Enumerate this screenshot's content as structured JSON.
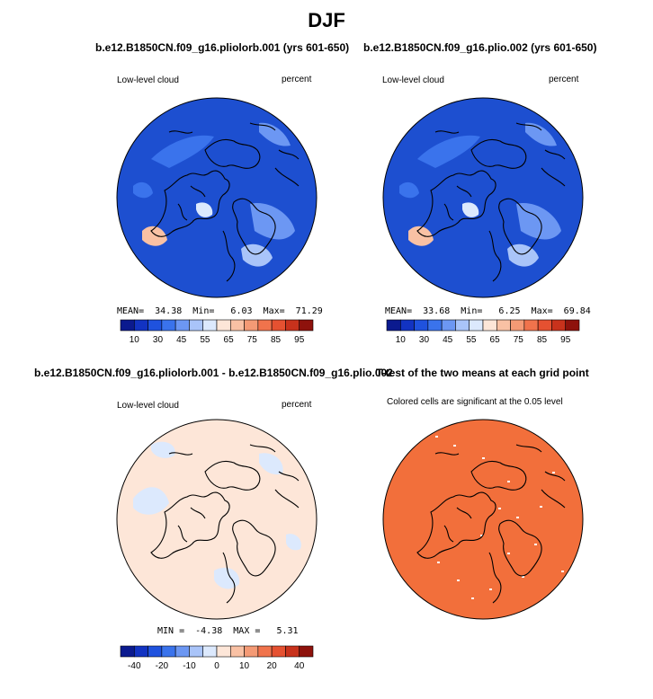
{
  "title": "DJF",
  "panels": [
    {
      "title": "b.e12.B1850CN.f09_g16.pliolorb.001 (yrs 601-650)",
      "left_label": "Low-level cloud",
      "right_label": "percent",
      "stats": "MEAN=  34.38  Min=   6.03  Max=  71.29",
      "base_color": "#1d4fd0",
      "colorbar": {
        "colors": [
          "#0b1a8f",
          "#1233c2",
          "#1f52de",
          "#3a73ec",
          "#6c97f3",
          "#a9c4f9",
          "#dce9fd",
          "#fde6d8",
          "#f9c1a4",
          "#f49a75",
          "#f0734c",
          "#e55131",
          "#c8321c",
          "#8e120c"
        ],
        "labels": [
          "10",
          "30",
          "45",
          "55",
          "65",
          "75",
          "85",
          "95"
        ]
      }
    },
    {
      "title": "b.e12.B1850CN.f09_g16.plio.002 (yrs 601-650)",
      "left_label": "Low-level cloud",
      "right_label": "percent",
      "stats": "MEAN=  33.68  Min=   6.25  Max=  69.84",
      "base_color": "#1d4fd0",
      "colorbar": {
        "colors": [
          "#0b1a8f",
          "#1233c2",
          "#1f52de",
          "#3a73ec",
          "#6c97f3",
          "#a9c4f9",
          "#dce9fd",
          "#fde6d8",
          "#f9c1a4",
          "#f49a75",
          "#f0734c",
          "#e55131",
          "#c8321c",
          "#8e120c"
        ],
        "labels": [
          "10",
          "30",
          "45",
          "55",
          "65",
          "75",
          "85",
          "95"
        ]
      }
    },
    {
      "title": "b.e12.B1850CN.f09_g16.pliolorb.001 - b.e12.B1850CN.f09_g16.plio.002",
      "left_label": "Low-level cloud",
      "right_label": "percent",
      "stats": "MIN =  -4.38  MAX =   5.31",
      "base_color": "#fde6d8",
      "colorbar": {
        "colors": [
          "#0b1a8f",
          "#1233c2",
          "#1f52de",
          "#3a73ec",
          "#6c97f3",
          "#a9c4f9",
          "#dce9fd",
          "#fde6d8",
          "#f9c1a4",
          "#f49a75",
          "#f0734c",
          "#e55131",
          "#c8321c",
          "#8e120c"
        ],
        "labels": [
          "-40",
          "-20",
          "-10",
          "0",
          "10",
          "20",
          "40"
        ]
      }
    },
    {
      "title": "T-test of the two means at each grid point",
      "subtitle": "Colored cells are significant at the 0.05 level",
      "base_color": "#f26f3b"
    }
  ]
}
